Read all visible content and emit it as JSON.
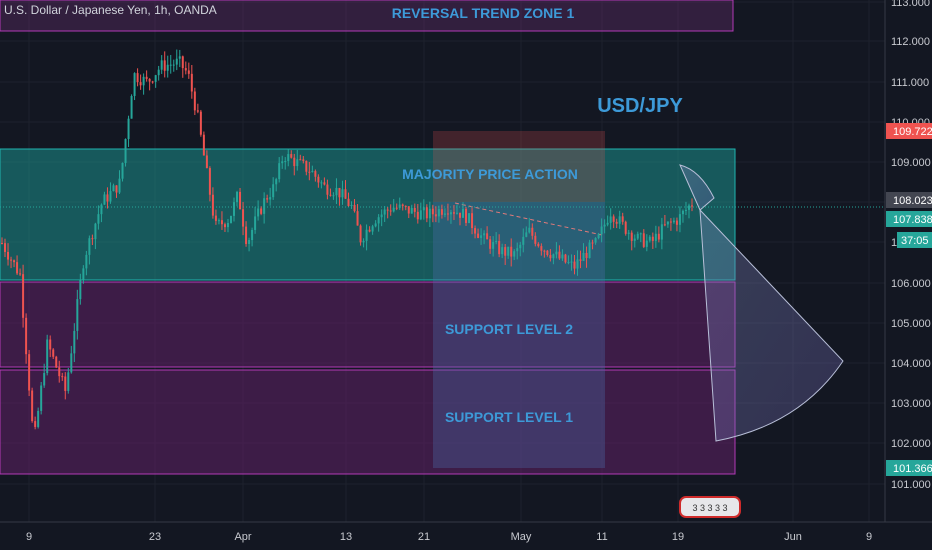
{
  "header": {
    "title": "U.S. Dollar / Japanese Yen, 1h, OANDA"
  },
  "colors": {
    "up": "#26a69a",
    "down": "#ef5350",
    "zone_purple": "#b23ab6",
    "zone_teal": "#1fb5b0",
    "label_blue": "#3d9ad8",
    "price_tag_red": "#ef5350",
    "price_tag_teal": "#26a69a",
    "background": "#131722",
    "axis_text": "#c8cad0"
  },
  "chart_data": {
    "type": "candlestick",
    "symbol": "USD/JPY",
    "timeframe": "1h",
    "source": "OANDA",
    "ylim": [
      100.4,
      113.0
    ],
    "y_ticks": [
      "113.000",
      "112.000",
      "111.000",
      "110.000",
      "109.000",
      "108.000",
      "107.000",
      "106.000",
      "105.000",
      "104.000",
      "103.000",
      "102.000",
      "101.000"
    ],
    "x_ticks": [
      "9",
      "23",
      "Apr",
      "13",
      "21",
      "May",
      "11",
      "19",
      "Jun",
      "9"
    ],
    "price_tags": [
      {
        "value": "109.722",
        "color": "red"
      },
      {
        "value": "108.023",
        "color": "gray"
      },
      {
        "value": "107.838",
        "color": "teal"
      },
      {
        "value": "37:05",
        "color": "teal"
      },
      {
        "value": "101.366",
        "color": "teal"
      }
    ],
    "zones": [
      {
        "label": "REVERSAL TREND ZONE 1",
        "from": 112.3,
        "to": 113.1,
        "color": "purple"
      },
      {
        "label": "MAJORITY PRICE ACTION",
        "from": 106.1,
        "to": 109.3,
        "color": "teal"
      },
      {
        "label": "SUPPORT LEVEL 2",
        "from": 103.9,
        "to": 106.0,
        "color": "purple"
      },
      {
        "label": "SUPPORT LEVEL 1",
        "from": 101.3,
        "to": 103.8,
        "color": "purple"
      }
    ],
    "annotations": [
      {
        "text": "USD/JPY"
      }
    ],
    "price_path": [
      [
        0,
        107.0
      ],
      [
        0.02,
        106.2
      ],
      [
        0.035,
        102.0
      ],
      [
        0.05,
        104.5
      ],
      [
        0.07,
        103.3
      ],
      [
        0.09,
        106.6
      ],
      [
        0.11,
        108.0
      ],
      [
        0.13,
        108.5
      ],
      [
        0.145,
        111.2
      ],
      [
        0.16,
        111.0
      ],
      [
        0.175,
        111.4
      ],
      [
        0.195,
        111.5
      ],
      [
        0.205,
        111.2
      ],
      [
        0.215,
        110.2
      ],
      [
        0.225,
        108.8
      ],
      [
        0.235,
        107.4
      ],
      [
        0.25,
        107.6
      ],
      [
        0.26,
        108.2
      ],
      [
        0.27,
        107.0
      ],
      [
        0.28,
        107.6
      ],
      [
        0.29,
        108.1
      ],
      [
        0.3,
        108.4
      ],
      [
        0.31,
        109.2
      ],
      [
        0.325,
        109.0
      ],
      [
        0.34,
        108.8
      ],
      [
        0.355,
        108.4
      ],
      [
        0.37,
        108.3
      ],
      [
        0.385,
        107.9
      ],
      [
        0.395,
        107.1
      ],
      [
        0.41,
        107.6
      ],
      [
        0.43,
        107.9
      ],
      [
        0.45,
        107.8
      ],
      [
        0.47,
        107.7
      ],
      [
        0.49,
        107.9
      ],
      [
        0.51,
        107.7
      ],
      [
        0.53,
        107.1
      ],
      [
        0.55,
        106.8
      ],
      [
        0.565,
        106.7
      ],
      [
        0.58,
        107.3
      ],
      [
        0.595,
        106.9
      ],
      [
        0.615,
        106.6
      ],
      [
        0.63,
        106.4
      ],
      [
        0.645,
        106.8
      ],
      [
        0.655,
        107.0
      ],
      [
        0.67,
        107.8
      ],
      [
        0.685,
        107.4
      ],
      [
        0.7,
        107.1
      ],
      [
        0.715,
        107.0
      ],
      [
        0.73,
        107.4
      ],
      [
        0.745,
        107.6
      ],
      [
        0.76,
        108.0
      ]
    ]
  },
  "logo": {
    "text": "3 3 3 3 3"
  }
}
